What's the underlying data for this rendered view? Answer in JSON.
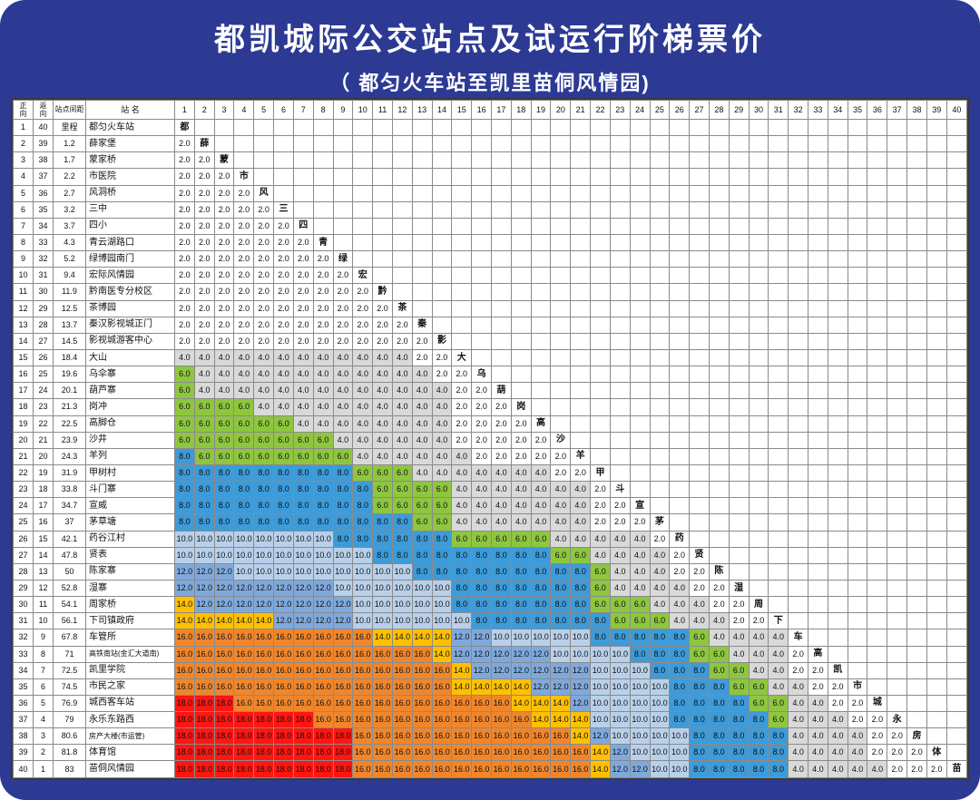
{
  "title": "都凯城际公交站点及试运行阶梯票价",
  "subtitle": "（ 都匀火车站至凯里苗侗风情园)",
  "table": {
    "col_headers": {
      "forward": "正向",
      "backward": "返向",
      "spacing": "站点间距",
      "name": "站 名"
    }
  },
  "fare_colors": {
    "2.0": "#ffffff",
    "4.0": "#d9d9d9",
    "6.0": "#8ec63f",
    "8.0": "#3d9bd9",
    "10.0": "#b9d0ea",
    "12.0": "#7fa9dc",
    "14.0": "#fec001",
    "16.0": "#f0862c",
    "18.0": "#fe1612"
  },
  "stations": [
    {
      "seq": 1,
      "ret": 40,
      "dist": "里程",
      "name": "都匀火车站",
      "abbr": "都",
      "fares": []
    },
    {
      "seq": 2,
      "ret": 39,
      "dist": "1.2",
      "name": "薛家堡",
      "abbr": "薛",
      "fares": [
        2
      ]
    },
    {
      "seq": 3,
      "ret": 38,
      "dist": "1.7",
      "name": "蒙家桥",
      "abbr": "蒙",
      "fares": [
        2,
        2
      ]
    },
    {
      "seq": 4,
      "ret": 37,
      "dist": "2.2",
      "name": "市医院",
      "abbr": "市",
      "fares": [
        2,
        2,
        2
      ]
    },
    {
      "seq": 5,
      "ret": 36,
      "dist": "2.7",
      "name": "风洞桥",
      "abbr": "风",
      "fares": [
        2,
        2,
        2,
        2
      ]
    },
    {
      "seq": 6,
      "ret": 35,
      "dist": "3.2",
      "name": "三中",
      "abbr": "三",
      "fares": [
        2,
        2,
        2,
        2,
        2
      ]
    },
    {
      "seq": 7,
      "ret": 34,
      "dist": "3.7",
      "name": "四小",
      "abbr": "四",
      "fares": [
        2,
        2,
        2,
        2,
        2,
        2
      ]
    },
    {
      "seq": 8,
      "ret": 33,
      "dist": "4.3",
      "name": "青云湖路口",
      "abbr": "青",
      "fares": [
        2,
        2,
        2,
        2,
        2,
        2,
        2
      ]
    },
    {
      "seq": 9,
      "ret": 32,
      "dist": "5.2",
      "name": "绿博园南门",
      "abbr": "绿",
      "fares": [
        2,
        2,
        2,
        2,
        2,
        2,
        2,
        2
      ]
    },
    {
      "seq": 10,
      "ret": 31,
      "dist": "9.4",
      "name": "宏际风情园",
      "abbr": "宏",
      "fares": [
        2,
        2,
        2,
        2,
        2,
        2,
        2,
        2,
        2
      ]
    },
    {
      "seq": 11,
      "ret": 30,
      "dist": "11.9",
      "name": "黔南医专分校区",
      "abbr": "黔",
      "fares": [
        2,
        2,
        2,
        2,
        2,
        2,
        2,
        2,
        2,
        2
      ]
    },
    {
      "seq": 12,
      "ret": 29,
      "dist": "12.5",
      "name": "茶博园",
      "abbr": "茶",
      "fares": [
        2,
        2,
        2,
        2,
        2,
        2,
        2,
        2,
        2,
        2,
        2
      ]
    },
    {
      "seq": 13,
      "ret": 28,
      "dist": "13.7",
      "name": "秦汉影视城正门",
      "abbr": "秦",
      "fares": [
        2,
        2,
        2,
        2,
        2,
        2,
        2,
        2,
        2,
        2,
        2,
        2
      ]
    },
    {
      "seq": 14,
      "ret": 27,
      "dist": "14.5",
      "name": "影视城游客中心",
      "abbr": "影",
      "fares": [
        2,
        2,
        2,
        2,
        2,
        2,
        2,
        2,
        2,
        2,
        2,
        2,
        2
      ]
    },
    {
      "seq": 15,
      "ret": 26,
      "dist": "18.4",
      "name": "大山",
      "abbr": "大",
      "fares": [
        4,
        4,
        4,
        4,
        4,
        4,
        4,
        4,
        4,
        4,
        4,
        4,
        2,
        2
      ]
    },
    {
      "seq": 16,
      "ret": 25,
      "dist": "19.6",
      "name": "乌伞寨",
      "abbr": "乌",
      "fares": [
        6,
        4,
        4,
        4,
        4,
        4,
        4,
        4,
        4,
        4,
        4,
        4,
        4,
        2,
        2
      ]
    },
    {
      "seq": 17,
      "ret": 24,
      "dist": "20.1",
      "name": "葫芦寨",
      "abbr": "葫",
      "fares": [
        6,
        4,
        4,
        4,
        4,
        4,
        4,
        4,
        4,
        4,
        4,
        4,
        4,
        4,
        2,
        2
      ]
    },
    {
      "seq": 18,
      "ret": 23,
      "dist": "21.3",
      "name": "岗冲",
      "abbr": "岗",
      "fares": [
        6,
        6,
        6,
        6,
        4,
        4,
        4,
        4,
        4,
        4,
        4,
        4,
        4,
        4,
        2,
        2,
        2
      ]
    },
    {
      "seq": 19,
      "ret": 22,
      "dist": "22.5",
      "name": "高脚仓",
      "abbr": "高",
      "fares": [
        6,
        6,
        6,
        6,
        6,
        6,
        4,
        4,
        4,
        4,
        4,
        4,
        4,
        4,
        2,
        2,
        2,
        2
      ]
    },
    {
      "seq": 20,
      "ret": 21,
      "dist": "23.9",
      "name": "沙井",
      "abbr": "沙",
      "fares": [
        6,
        6,
        6,
        6,
        6,
        6,
        6,
        6,
        4,
        4,
        4,
        4,
        4,
        4,
        2,
        2,
        2,
        2,
        2
      ]
    },
    {
      "seq": 21,
      "ret": 20,
      "dist": "24.3",
      "name": "羊列",
      "abbr": "羊",
      "fares": [
        8,
        6,
        6,
        6,
        6,
        6,
        6,
        6,
        6,
        4,
        4,
        4,
        4,
        4,
        4,
        2,
        2,
        2,
        2,
        2
      ]
    },
    {
      "seq": 22,
      "ret": 19,
      "dist": "31.9",
      "name": "甲树村",
      "abbr": "甲",
      "fares": [
        8,
        8,
        8,
        8,
        8,
        8,
        8,
        8,
        8,
        6,
        6,
        6,
        4,
        4,
        4,
        4,
        4,
        4,
        4,
        2,
        2
      ]
    },
    {
      "seq": 23,
      "ret": 18,
      "dist": "33.8",
      "name": "斗门寨",
      "abbr": "斗",
      "fares": [
        8,
        8,
        8,
        8,
        8,
        8,
        8,
        8,
        8,
        8,
        6,
        6,
        6,
        6,
        4,
        4,
        4,
        4,
        4,
        4,
        4,
        2
      ]
    },
    {
      "seq": 24,
      "ret": 17,
      "dist": "34.7",
      "name": "宣威",
      "abbr": "宣",
      "fares": [
        8,
        8,
        8,
        8,
        8,
        8,
        8,
        8,
        8,
        8,
        6,
        6,
        6,
        6,
        4,
        4,
        4,
        4,
        4,
        4,
        4,
        2,
        2
      ]
    },
    {
      "seq": 25,
      "ret": 16,
      "dist": "37",
      "name": "茅草塘",
      "abbr": "茅",
      "fares": [
        8,
        8,
        8,
        8,
        8,
        8,
        8,
        8,
        8,
        8,
        8,
        8,
        6,
        6,
        4,
        4,
        4,
        4,
        4,
        4,
        4,
        2,
        2,
        2
      ]
    },
    {
      "seq": 26,
      "ret": 15,
      "dist": "42.1",
      "name": "药谷江村",
      "abbr": "药",
      "fares": [
        10,
        10,
        10,
        10,
        10,
        10,
        10,
        10,
        8,
        8,
        8,
        8,
        8,
        8,
        6,
        6,
        6,
        6,
        6,
        4,
        4,
        4,
        4,
        4,
        2
      ]
    },
    {
      "seq": 27,
      "ret": 14,
      "dist": "47.8",
      "name": "贤表",
      "abbr": "贤",
      "fares": [
        10,
        10,
        10,
        10,
        10,
        10,
        10,
        10,
        10,
        10,
        8,
        8,
        8,
        8,
        8,
        8,
        8,
        8,
        8,
        6,
        6,
        4,
        4,
        4,
        4,
        2
      ]
    },
    {
      "seq": 28,
      "ret": 13,
      "dist": "50",
      "name": "陈家寨",
      "abbr": "陈",
      "fares": [
        12,
        12,
        12,
        10,
        10,
        10,
        10,
        10,
        10,
        10,
        10,
        10,
        8,
        8,
        8,
        8,
        8,
        8,
        8,
        8,
        8,
        6,
        4,
        4,
        4,
        2,
        2
      ]
    },
    {
      "seq": 29,
      "ret": 12,
      "dist": "52.8",
      "name": "湿寨",
      "abbr": "湿",
      "fares": [
        12,
        12,
        12,
        12,
        12,
        12,
        12,
        12,
        10,
        10,
        10,
        10,
        10,
        10,
        8,
        8,
        8,
        8,
        8,
        8,
        8,
        6,
        4,
        4,
        4,
        4,
        2,
        2
      ]
    },
    {
      "seq": 30,
      "ret": 11,
      "dist": "54.1",
      "name": "周家桥",
      "abbr": "周",
      "fares": [
        14,
        12,
        12,
        12,
        12,
        12,
        12,
        12,
        12,
        10,
        10,
        10,
        10,
        10,
        8,
        8,
        8,
        8,
        8,
        8,
        8,
        6,
        6,
        6,
        4,
        4,
        4,
        2,
        2
      ]
    },
    {
      "seq": 31,
      "ret": 10,
      "dist": "56.1",
      "name": "下司镇政府",
      "abbr": "下",
      "fares": [
        14,
        14,
        14,
        14,
        14,
        12,
        12,
        12,
        12,
        10,
        10,
        10,
        10,
        10,
        10,
        8,
        8,
        8,
        8,
        8,
        8,
        8,
        6,
        6,
        6,
        4,
        4,
        4,
        2,
        2
      ]
    },
    {
      "seq": 32,
      "ret": 9,
      "dist": "67.8",
      "name": "车管所",
      "abbr": "车",
      "fares": [
        16,
        16,
        16,
        16,
        16,
        16,
        16,
        16,
        16,
        16,
        14,
        14,
        14,
        14,
        12,
        12,
        10,
        10,
        10,
        10,
        10,
        8,
        8,
        8,
        8,
        8,
        6,
        4,
        4,
        4,
        4
      ]
    },
    {
      "seq": 33,
      "ret": 8,
      "dist": "71",
      "name": "高铁南站(金汇大道南)",
      "abbr": "高",
      "fares": [
        16,
        16,
        16,
        16,
        16,
        16,
        16,
        16,
        16,
        16,
        16,
        16,
        16,
        14,
        12,
        12,
        12,
        12,
        12,
        10,
        10,
        10,
        10,
        8,
        8,
        8,
        6,
        6,
        4,
        4,
        4,
        2
      ]
    },
    {
      "seq": 34,
      "ret": 7,
      "dist": "72.5",
      "name": "凯里学院",
      "abbr": "凯",
      "fares": [
        16,
        16,
        16,
        16,
        16,
        16,
        16,
        16,
        16,
        16,
        16,
        16,
        16,
        16,
        14,
        12,
        12,
        12,
        12,
        12,
        12,
        10,
        10,
        10,
        8,
        8,
        8,
        6,
        6,
        4,
        4,
        2,
        2
      ]
    },
    {
      "seq": 35,
      "ret": 6,
      "dist": "74.5",
      "name": "市民之家",
      "abbr": "市",
      "fares": [
        16,
        16,
        16,
        16,
        16,
        16,
        16,
        16,
        16,
        16,
        16,
        16,
        16,
        16,
        14,
        14,
        14,
        14,
        12,
        12,
        12,
        10,
        10,
        10,
        10,
        8,
        8,
        8,
        6,
        6,
        4,
        4,
        2,
        2
      ]
    },
    {
      "seq": 36,
      "ret": 5,
      "dist": "76.9",
      "name": "城西客车站",
      "abbr": "城",
      "fares": [
        18,
        18,
        18,
        16,
        16,
        16,
        16,
        16,
        16,
        16,
        16,
        16,
        16,
        16,
        16,
        16,
        16,
        14,
        14,
        14,
        12,
        10,
        10,
        10,
        10,
        8,
        8,
        8,
        8,
        6,
        6,
        4,
        4,
        2,
        2
      ]
    },
    {
      "seq": 37,
      "ret": 4,
      "dist": "79",
      "name": "永乐东路西",
      "abbr": "永",
      "fares": [
        18,
        18,
        18,
        18,
        18,
        18,
        18,
        16,
        16,
        16,
        16,
        16,
        16,
        16,
        16,
        16,
        16,
        16,
        14,
        14,
        14,
        10,
        10,
        10,
        10,
        8,
        8,
        8,
        8,
        8,
        6,
        4,
        4,
        4,
        2,
        2
      ]
    },
    {
      "seq": 38,
      "ret": 3,
      "dist": "80.6",
      "name": "房产大楼(市运管)",
      "abbr": "房",
      "fares": [
        18,
        18,
        18,
        18,
        18,
        18,
        18,
        18,
        18,
        16,
        16,
        16,
        16,
        16,
        16,
        16,
        16,
        16,
        16,
        16,
        14,
        12,
        10,
        10,
        10,
        10,
        8,
        8,
        8,
        8,
        8,
        4,
        4,
        4,
        4,
        2,
        2
      ]
    },
    {
      "seq": 39,
      "ret": 2,
      "dist": "81.8",
      "name": "体育馆",
      "abbr": "体",
      "fares": [
        18,
        18,
        18,
        18,
        18,
        18,
        18,
        18,
        18,
        16,
        16,
        16,
        16,
        16,
        16,
        16,
        16,
        16,
        16,
        16,
        16,
        14,
        12,
        10,
        10,
        10,
        8,
        8,
        8,
        8,
        8,
        4,
        4,
        4,
        4,
        2,
        2,
        2
      ]
    },
    {
      "seq": 40,
      "ret": 1,
      "dist": "83",
      "name": "苗侗风情园",
      "abbr": "苗",
      "fares": [
        18,
        18,
        18,
        18,
        18,
        18,
        18,
        18,
        18,
        16,
        16,
        16,
        16,
        16,
        16,
        16,
        16,
        16,
        16,
        16,
        16,
        14,
        12,
        12,
        10,
        10,
        8,
        8,
        8,
        8,
        8,
        4,
        4,
        4,
        4,
        4,
        2,
        2,
        2
      ]
    }
  ]
}
